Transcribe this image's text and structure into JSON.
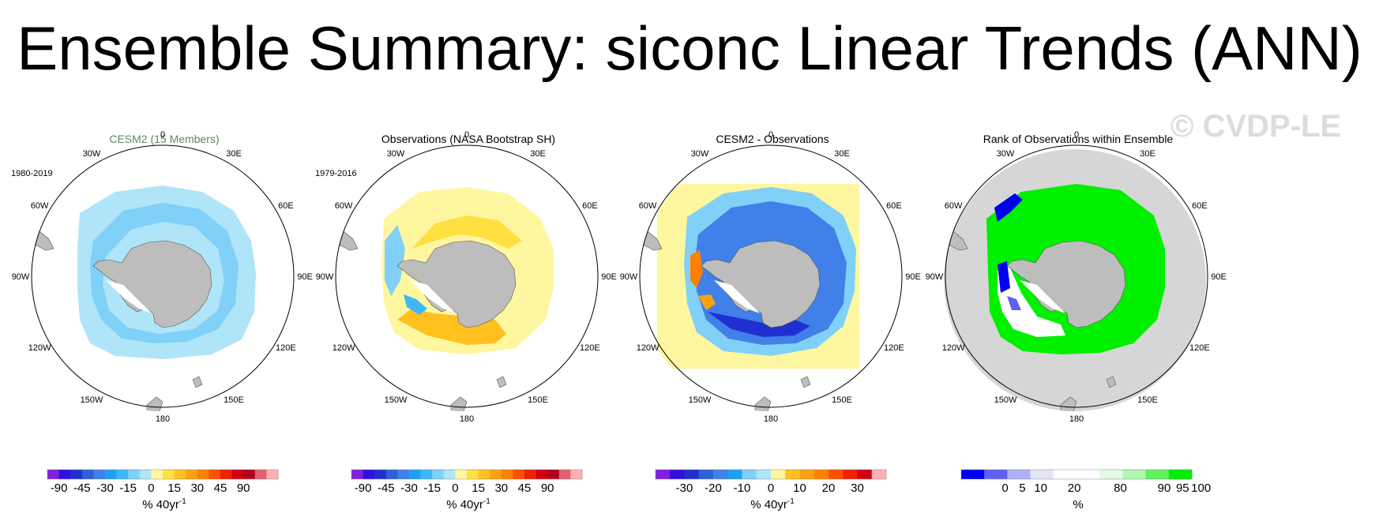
{
  "title": "Ensemble Summary: siconc Linear Trends (ANN)",
  "watermark": "© CVDP-LE",
  "lon_labels": [
    "0",
    "30E",
    "60E",
    "90E",
    "120E",
    "150E",
    "180",
    "150W",
    "120W",
    "90W",
    "60W",
    "30W"
  ],
  "colors": {
    "land": "#bdbdbd",
    "ocean_bg": "#ffffff",
    "circle": "#000000",
    "cesm_title": "#5a8a5a"
  },
  "panels": [
    {
      "title": "CESM2 (15 Members)",
      "title_color": "#5a8a5a",
      "period": "1980-2019",
      "unit_prefix": "% 40yr",
      "unit_sup": "-1",
      "colorbar": {
        "colors": [
          "#8020e0",
          "#3010e0",
          "#2030d0",
          "#3060d8",
          "#4080e8",
          "#20a0f0",
          "#40b8f8",
          "#80d0f8",
          "#b0e4f8",
          "#fff7a0",
          "#ffe040",
          "#ffc020",
          "#ffa010",
          "#ff8000",
          "#ff5000",
          "#f02000",
          "#d00010",
          "#b00020",
          "#e06070",
          "#ffb0b0"
        ],
        "labels": [
          "-90",
          "-45",
          "-30",
          "-15",
          "0",
          "15",
          "30",
          "45",
          "90"
        ],
        "label_positions": [
          0,
          2,
          4,
          6,
          8,
          10,
          12,
          14,
          16
        ]
      }
    },
    {
      "title": "Observations (NASA Bootstrap SH)",
      "title_color": "#000000",
      "period": "1979-2016",
      "unit_prefix": "% 40yr",
      "unit_sup": "-1",
      "colorbar": {
        "colors": [
          "#8020e0",
          "#3010e0",
          "#2030d0",
          "#3060d8",
          "#4080e8",
          "#20a0f0",
          "#40b8f8",
          "#80d0f8",
          "#b0e4f8",
          "#fff7a0",
          "#ffe040",
          "#ffc020",
          "#ffa010",
          "#ff8000",
          "#ff5000",
          "#f02000",
          "#d00010",
          "#b00020",
          "#e06070",
          "#ffb0b0"
        ],
        "labels": [
          "-90",
          "-45",
          "-30",
          "-15",
          "0",
          "15",
          "30",
          "45",
          "90"
        ],
        "label_positions": [
          0,
          2,
          4,
          6,
          8,
          10,
          12,
          14,
          16
        ]
      }
    },
    {
      "title": "CESM2 - Observations",
      "title_color": "#000000",
      "period": "",
      "unit_prefix": "% 40yr",
      "unit_sup": "-1",
      "colorbar": {
        "colors": [
          "#8020e0",
          "#3010e0",
          "#2030d0",
          "#3060d8",
          "#4080e8",
          "#20a0f0",
          "#80d0f8",
          "#b0e4f8",
          "#fff7a0",
          "#ffc020",
          "#ffa010",
          "#ff8000",
          "#ff5000",
          "#f02000",
          "#d00010",
          "#ffb0b0"
        ],
        "labels": [
          "-30",
          "-20",
          "-10",
          "0",
          "10",
          "20",
          "30"
        ],
        "label_positions": [
          1,
          3,
          5,
          7,
          9,
          11,
          13
        ]
      }
    },
    {
      "title": "Rank of Observations within Ensemble",
      "title_color": "#000000",
      "period": "",
      "unit_prefix": "%",
      "unit_sup": "",
      "colorbar": {
        "colors": [
          "#0000f0",
          "#6060f0",
          "#b0b0f8",
          "#e4e4f8",
          "#ffffff",
          "#ffffff",
          "#e4fae4",
          "#b0f8b0",
          "#60f060",
          "#00f000"
        ],
        "labels": [
          "0",
          "5",
          "10",
          "20",
          "80",
          "90",
          "95",
          "100"
        ],
        "label_positions": [
          0.9,
          1.65,
          2.45,
          3.9,
          5.9,
          7.8,
          8.6,
          9.4
        ]
      }
    }
  ],
  "chart_data": [
    {
      "type": "heatmap",
      "title": "CESM2 (15 Members)",
      "annotation": "1980-2019",
      "projection": "south polar stereographic",
      "colorbar_label": "% 40yr-1",
      "colorbar_ticks": [
        -90,
        -45,
        -30,
        -15,
        0,
        15,
        30,
        45,
        90
      ],
      "summary": "uniform weak negative trend (about -5 to -15) around Antarctica, slightly stronger in inner ring"
    },
    {
      "type": "heatmap",
      "title": "Observations (NASA Bootstrap SH)",
      "annotation": "1979-2016",
      "projection": "south polar stereographic",
      "colorbar_label": "% 40yr-1",
      "colorbar_ticks": [
        -90,
        -45,
        -30,
        -15,
        0,
        15,
        30,
        45,
        90
      ],
      "summary": "positive trends (about +5 to +30) in Ross Sea and Weddell sectors, negative near Bellingshausen Sea"
    },
    {
      "type": "heatmap",
      "title": "CESM2 - Observations",
      "projection": "south polar stereographic",
      "colorbar_label": "% 40yr-1",
      "colorbar_ticks": [
        -30,
        -20,
        -10,
        0,
        10,
        20,
        30
      ],
      "summary": "mostly negative differences (about -5 to -30), strongest near Ross and Weddell seas; positive near Antarctic Peninsula"
    },
    {
      "type": "heatmap",
      "title": "Rank of Observations within Ensemble",
      "projection": "south polar stereographic",
      "colorbar_label": "%",
      "colorbar_ticks": [
        0,
        5,
        10,
        20,
        80,
        90,
        95,
        100
      ],
      "summary": "most of the sea-ice zone at 100th percentile (green); small regions below 5% (blue) in Weddell Sea and near Peninsula"
    }
  ]
}
